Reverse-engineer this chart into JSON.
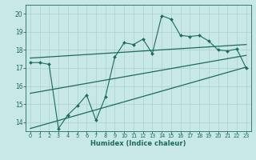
{
  "title": "",
  "xlabel": "Humidex (Indice chaleur)",
  "bg_color": "#c8e8e8",
  "grid_color": "#b0d4d4",
  "line_color": "#1a6b5a",
  "xlim": [
    -0.5,
    23.5
  ],
  "ylim": [
    13.5,
    20.5
  ],
  "yticks": [
    14,
    15,
    16,
    17,
    18,
    19,
    20
  ],
  "xticks": [
    0,
    1,
    2,
    3,
    4,
    5,
    6,
    7,
    8,
    9,
    10,
    11,
    12,
    13,
    14,
    15,
    16,
    17,
    18,
    19,
    20,
    21,
    22,
    23
  ],
  "data_x": [
    0,
    1,
    2,
    3,
    4,
    5,
    6,
    7,
    8,
    9,
    10,
    11,
    12,
    13,
    14,
    15,
    16,
    17,
    18,
    19,
    20,
    21,
    22,
    23
  ],
  "data_y": [
    17.3,
    17.3,
    17.2,
    13.65,
    14.4,
    14.9,
    15.5,
    14.1,
    15.4,
    17.6,
    18.4,
    18.3,
    18.6,
    17.8,
    19.9,
    19.7,
    18.8,
    18.75,
    18.8,
    18.5,
    18.0,
    17.95,
    18.05,
    17.0
  ],
  "trend1_x": [
    0,
    23
  ],
  "trend1_y": [
    17.55,
    18.3
  ],
  "trend2_x": [
    0,
    23
  ],
  "trend2_y": [
    13.65,
    17.05
  ],
  "trend3_x": [
    0,
    23
  ],
  "trend3_y": [
    15.6,
    17.7
  ]
}
